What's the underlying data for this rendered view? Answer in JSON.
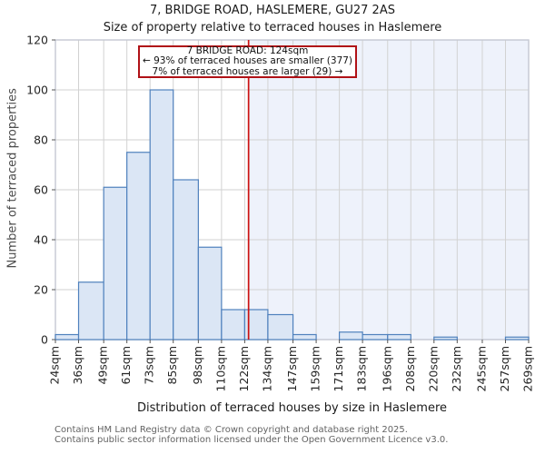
{
  "header": {
    "title": "7, BRIDGE ROAD, HASLEMERE, GU27 2AS",
    "subtitle": "Size of property relative to terraced houses in Haslemere"
  },
  "annotation": {
    "line1": "7 BRIDGE ROAD: 124sqm",
    "line2": "← 93% of terraced houses are smaller (377)",
    "line3": "7% of terraced houses are larger (29) →"
  },
  "chart_data": {
    "type": "bar",
    "title": "7, BRIDGE ROAD, HASLEMERE, GU27 2AS",
    "subtitle": "Size of property relative to terraced houses in Haslemere",
    "xlabel": "Distribution of terraced houses by size in Haslemere",
    "ylabel": "Number of terraced properties",
    "x_tick_labels": [
      "24sqm",
      "36sqm",
      "49sqm",
      "61sqm",
      "73sqm",
      "85sqm",
      "98sqm",
      "110sqm",
      "122sqm",
      "134sqm",
      "147sqm",
      "159sqm",
      "171sqm",
      "183sqm",
      "196sqm",
      "208sqm",
      "220sqm",
      "232sqm",
      "245sqm",
      "257sqm",
      "269sqm"
    ],
    "bin_edges_sqm": [
      24,
      36,
      49,
      61,
      73,
      85,
      98,
      110,
      122,
      134,
      147,
      159,
      171,
      183,
      196,
      208,
      220,
      232,
      245,
      257,
      269
    ],
    "values": [
      2,
      23,
      61,
      75,
      100,
      64,
      37,
      12,
      12,
      10,
      2,
      0,
      3,
      2,
      2,
      0,
      1,
      0,
      0,
      1
    ],
    "ylim": [
      0,
      120
    ],
    "y_ticks": [
      0,
      20,
      40,
      60,
      80,
      100,
      120
    ],
    "xlim_sqm": [
      24,
      269
    ],
    "marker_sqm": 124,
    "marker_label": "7 BRIDGE ROAD: 124sqm",
    "smaller_pct": 93,
    "smaller_count": 377,
    "larger_pct": 7,
    "larger_count": 29,
    "grid": true,
    "legend": "none",
    "colors": {
      "bar_fill": "#dbe6f5",
      "bar_edge": "#4f81bd",
      "marker_line": "#cc1111",
      "annotation_border": "#b01116",
      "shade_right_of_marker": "#eef2fb",
      "gridline": "#d2d2d2",
      "spine": "#c4c8d2"
    }
  },
  "footer": {
    "line1": "Contains HM Land Registry data © Crown copyright and database right 2025.",
    "line2": "Contains public sector information licensed under the Open Government Licence v3.0."
  }
}
